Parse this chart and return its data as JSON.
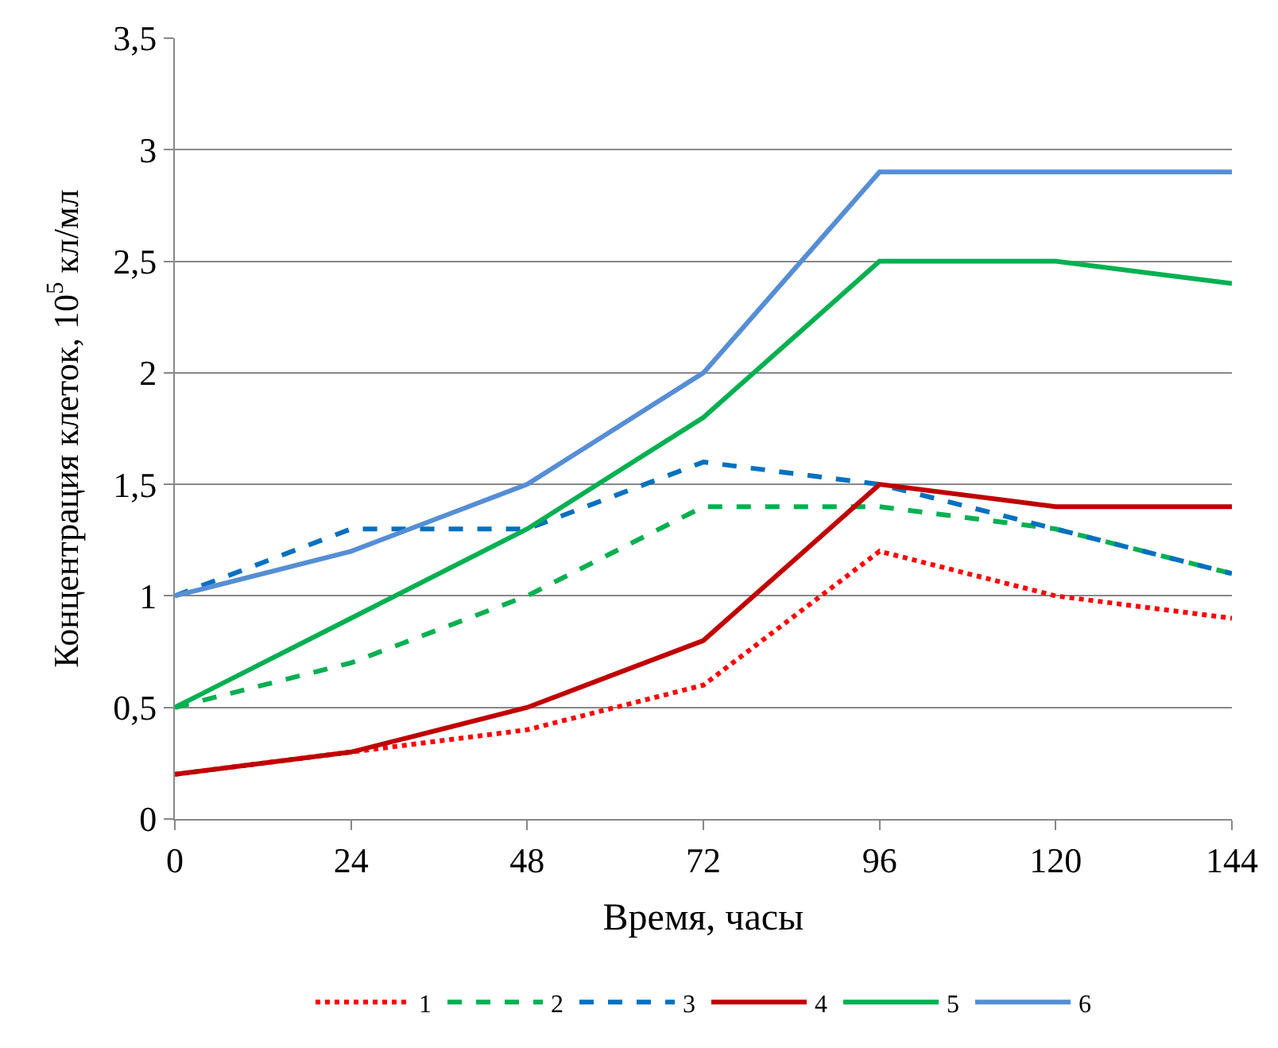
{
  "chart_data": {
    "type": "line",
    "xlabel": "Время, часы",
    "ylabel": "Концентрация клеток, 10$^{5}$ кл/мл",
    "x": [
      0,
      24,
      48,
      72,
      96,
      120,
      144
    ],
    "xlim": [
      0,
      144
    ],
    "xticks": [
      0,
      24,
      48,
      72,
      96,
      120,
      144
    ],
    "ylim": [
      0,
      3.5
    ],
    "yticks": [
      0,
      {
        "value": 0.5,
        "label": "0,5"
      },
      1,
      {
        "value": 1.5,
        "label": "1,5"
      },
      2,
      {
        "value": 2.5,
        "label": "2,5"
      },
      3,
      {
        "value": 3.5,
        "label": "3,5"
      }
    ],
    "grid": "y",
    "legend": "bottom",
    "marker": "none",
    "series": [
      {
        "name": "1",
        "color": "#ff0000",
        "line_style": "dotted",
        "values": [
          0.2,
          0.3,
          0.4,
          0.6,
          1.2,
          1.0,
          0.9
        ]
      },
      {
        "name": "2",
        "color": "#00b050",
        "line_style": "dashed",
        "values": [
          0.5,
          0.7,
          1.0,
          1.4,
          1.4,
          1.3,
          1.1
        ]
      },
      {
        "name": "3",
        "color": "#0070c0",
        "line_style": "dashed",
        "values": [
          1.0,
          1.3,
          1.3,
          1.6,
          1.5,
          1.3,
          1.1
        ]
      },
      {
        "name": "4",
        "color": "#c00000",
        "line_style": "solid",
        "values": [
          0.2,
          0.3,
          0.5,
          0.8,
          1.5,
          1.4,
          1.4
        ]
      },
      {
        "name": "5",
        "color": "#00b050",
        "line_style": "solid",
        "values": [
          0.5,
          0.9,
          1.3,
          1.8,
          2.5,
          2.5,
          2.4
        ]
      },
      {
        "name": "6",
        "color": "#558ed5",
        "line_style": "solid",
        "values": [
          1.0,
          1.2,
          1.5,
          2.0,
          2.9,
          2.9,
          2.9
        ]
      }
    ]
  }
}
